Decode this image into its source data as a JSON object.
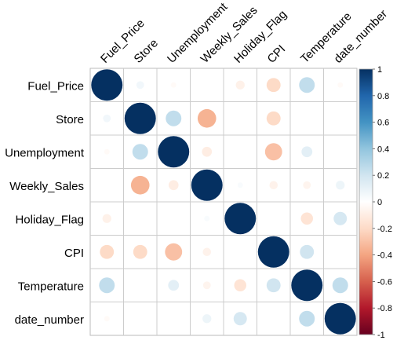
{
  "chart_data": {
    "type": "heatmap",
    "style": "corrplot-circle",
    "title": "",
    "variables": [
      "Fuel_Price",
      "Store",
      "Unemployment",
      "Weekly_Sales",
      "Holiday_Flag",
      "CPI",
      "Temperature",
      "date_number"
    ],
    "matrix": [
      [
        1.0,
        0.06,
        -0.03,
        0.0,
        -0.08,
        -0.2,
        0.25,
        -0.03
      ],
      [
        0.06,
        1.0,
        0.25,
        -0.35,
        0.0,
        -0.2,
        0.0,
        0.0
      ],
      [
        -0.03,
        0.25,
        1.0,
        -0.1,
        0.0,
        -0.3,
        0.12,
        0.0
      ],
      [
        0.0,
        -0.35,
        -0.1,
        1.0,
        0.03,
        -0.07,
        -0.06,
        0.08
      ],
      [
        -0.08,
        0.0,
        0.0,
        0.03,
        1.0,
        0.0,
        -0.15,
        0.18
      ],
      [
        -0.2,
        -0.2,
        -0.3,
        -0.07,
        0.0,
        1.0,
        0.2,
        0.0
      ],
      [
        0.25,
        0.0,
        0.12,
        -0.06,
        -0.15,
        0.2,
        1.0,
        0.25
      ],
      [
        -0.03,
        0.0,
        0.0,
        0.08,
        0.18,
        0.0,
        0.25,
        1.0
      ]
    ],
    "colorbar": {
      "range": [
        -1,
        1
      ],
      "ticks": [
        "-1",
        "-0.8",
        "-0.6",
        "-0.4",
        "-0.2",
        "0",
        "0.2",
        "0.4",
        "0.6",
        "0.8",
        "1"
      ],
      "stops": [
        {
          "value": -1.0,
          "color": "#67001f"
        },
        {
          "value": -0.8,
          "color": "#b2182b"
        },
        {
          "value": -0.6,
          "color": "#d6604d"
        },
        {
          "value": -0.4,
          "color": "#f4a582"
        },
        {
          "value": -0.2,
          "color": "#fddbc7"
        },
        {
          "value": 0.0,
          "color": "#ffffff"
        },
        {
          "value": 0.2,
          "color": "#d1e5f0"
        },
        {
          "value": 0.4,
          "color": "#92c5de"
        },
        {
          "value": 0.6,
          "color": "#4393c3"
        },
        {
          "value": 0.8,
          "color": "#2166ac"
        },
        {
          "value": 1.0,
          "color": "#053061"
        }
      ]
    },
    "grid": true,
    "legend_placement": "right"
  }
}
